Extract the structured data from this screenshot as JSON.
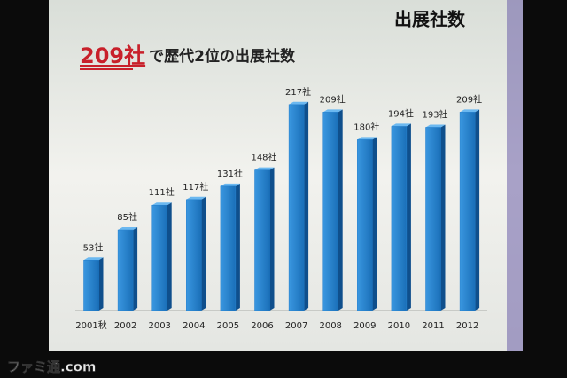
{
  "chart_data": {
    "type": "bar",
    "title": "出展社数",
    "subtitle": {
      "emphasis": "209社",
      "rest": "で歴代2位の出展社数"
    },
    "categories": [
      "2001秋",
      "2002",
      "2003",
      "2004",
      "2005",
      "2006",
      "2007",
      "2008",
      "2009",
      "2010",
      "2011",
      "2012"
    ],
    "values": [
      53,
      85,
      111,
      117,
      131,
      148,
      217,
      209,
      180,
      194,
      193,
      209
    ],
    "value_labels": [
      "53社",
      "85社",
      "111社",
      "117社",
      "131社",
      "148社",
      "217社",
      "209社",
      "180社",
      "194社",
      "193社",
      "209社"
    ],
    "color": "#1f7ccc"
  },
  "watermark": "ファミ通.com"
}
